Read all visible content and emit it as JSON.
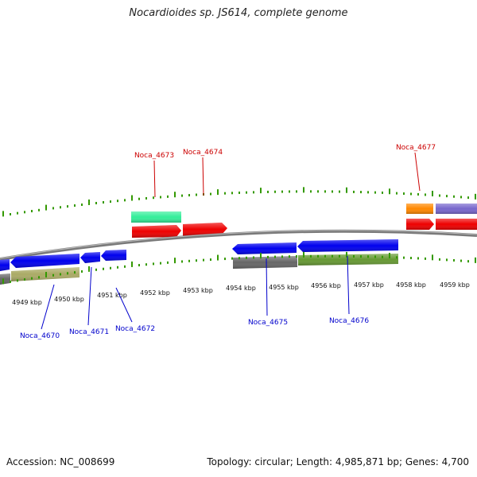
{
  "title": "Nocardioides sp. JS614, complete genome",
  "footer": {
    "accession": "Accession: NC_008699",
    "topology": "Topology: circular; Length: 4,985,871 bp; Genes: 4,700"
  },
  "colors": {
    "backbone": "#808080",
    "tick": "#339900",
    "forward_label": "#cc0000",
    "reverse_label": "#0000cc",
    "forward_gene": "#ee0000",
    "reverse_gene": "#0000ee"
  },
  "scale_ticks": [
    "4949 kbp",
    "4950 kbp",
    "4951 kbp",
    "4952 kbp",
    "4953 kbp",
    "4954 kbp",
    "4955 kbp",
    "4956 kbp",
    "4957 kbp",
    "4958 kbp",
    "4959 kbp"
  ],
  "gene_labels": {
    "forward": [
      "Noca_4673",
      "Noca_4674",
      "Noca_4677"
    ],
    "reverse": [
      "Noca_4670",
      "Noca_4671",
      "Noca_4672",
      "Noca_4675",
      "Noca_4676"
    ]
  }
}
